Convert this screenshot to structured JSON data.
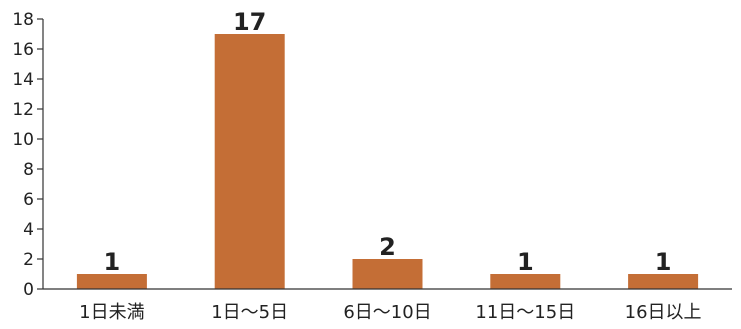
{
  "chart_data": {
    "type": "bar",
    "categories": [
      "1日未満",
      "1日〜5日",
      "6日〜10日",
      "11日〜15日",
      "16日以上"
    ],
    "values": [
      1,
      17,
      2,
      1,
      1
    ],
    "data_labels": [
      "1",
      "17",
      "2",
      "1",
      "1"
    ],
    "yticks": [
      "0",
      "2",
      "4",
      "6",
      "8",
      "10",
      "12",
      "14",
      "16",
      "18"
    ],
    "title": "",
    "xlabel": "",
    "ylabel": "",
    "ylim": [
      0,
      18
    ],
    "grid": false,
    "legend": "none",
    "bar_color": "#C46E36"
  }
}
